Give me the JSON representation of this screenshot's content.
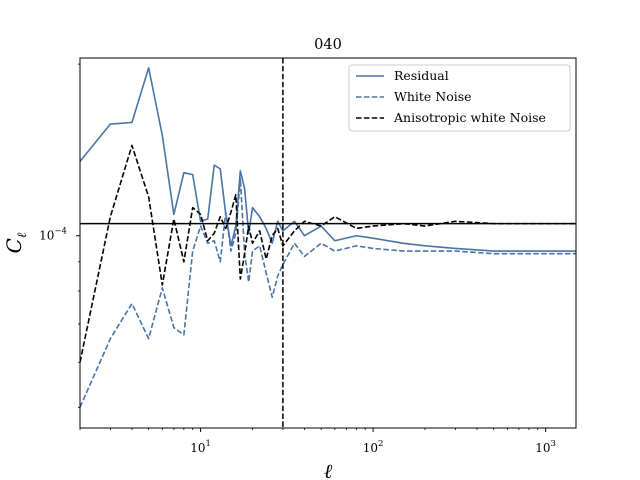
{
  "chart_data": {
    "type": "line",
    "title": "040",
    "xlabel": "ℓ",
    "ylabel": "C",
    "ylabel_sub": "ℓ",
    "xscale": "log",
    "yscale": "log",
    "xlim": [
      2,
      1500
    ],
    "ylim": [
      4.6e-05,
      0.000205
    ],
    "x_ticks": [
      {
        "value": 10,
        "base": "10",
        "exp": "1"
      },
      {
        "value": 100,
        "base": "10",
        "exp": "2"
      },
      {
        "value": 1000,
        "base": "10",
        "exp": "3"
      }
    ],
    "y_ticks": [
      {
        "value": 0.0001,
        "base": "10",
        "exp": "−4"
      }
    ],
    "hline": 0.000105,
    "vline": 30,
    "legend_position": "top-right",
    "series": [
      {
        "name": "Residual",
        "color": "#4a74a5",
        "dash": "solid",
        "points": [
          [
            2,
            0.000135
          ],
          [
            3,
            0.000157
          ],
          [
            4,
            0.000158
          ],
          [
            5,
            0.000197
          ],
          [
            6,
            0.00015
          ],
          [
            7,
            0.000109
          ],
          [
            8,
            0.000129
          ],
          [
            9,
            0.000128
          ],
          [
            10,
            0.000106
          ],
          [
            11,
            0.000107
          ],
          [
            12,
            0.000133
          ],
          [
            13,
            0.000131
          ],
          [
            14,
            0.000109
          ],
          [
            15,
            9.6e-05
          ],
          [
            16,
            0.000104
          ],
          [
            17,
            0.00013
          ],
          [
            18,
            0.000121
          ],
          [
            19,
            0.000101
          ],
          [
            20,
            0.000112
          ],
          [
            22,
            0.000108
          ],
          [
            24,
            0.000103
          ],
          [
            26,
            9.7e-05
          ],
          [
            28,
            0.000106
          ],
          [
            30,
            0.000102
          ],
          [
            35,
            0.000106
          ],
          [
            40,
            0.0001
          ],
          [
            50,
            0.000104
          ],
          [
            60,
            9.8e-05
          ],
          [
            80,
            0.0001
          ],
          [
            100,
            9.9e-05
          ],
          [
            150,
            9.7e-05
          ],
          [
            200,
            9.6e-05
          ],
          [
            300,
            9.5e-05
          ],
          [
            500,
            9.4e-05
          ],
          [
            800,
            9.4e-05
          ],
          [
            1500,
            9.4e-05
          ]
        ]
      },
      {
        "name": "White Noise",
        "color": "#4a74a5",
        "dash": "dashed",
        "points": [
          [
            2,
            5e-05
          ],
          [
            3,
            6.6e-05
          ],
          [
            4,
            7.6e-05
          ],
          [
            5,
            6.6e-05
          ],
          [
            6,
            8.1e-05
          ],
          [
            7,
            6.9e-05
          ],
          [
            8,
            6.7e-05
          ],
          [
            9,
            9.4e-05
          ],
          [
            10,
            0.000104
          ],
          [
            11,
            9.7e-05
          ],
          [
            12,
            9.8e-05
          ],
          [
            13,
            9e-05
          ],
          [
            14,
            0.00011
          ],
          [
            15,
            9.4e-05
          ],
          [
            16,
            0.000101
          ],
          [
            17,
            0.000126
          ],
          [
            18,
            9.3e-05
          ],
          [
            19,
            8.3e-05
          ],
          [
            20,
            9.4e-05
          ],
          [
            22,
            9.6e-05
          ],
          [
            24,
            8.6e-05
          ],
          [
            26,
            7.8e-05
          ],
          [
            28,
            8.5e-05
          ],
          [
            30,
            8.9e-05
          ],
          [
            35,
            9.7e-05
          ],
          [
            40,
            9.2e-05
          ],
          [
            50,
            9.7e-05
          ],
          [
            60,
            9.4e-05
          ],
          [
            80,
            9.6e-05
          ],
          [
            100,
            9.5e-05
          ],
          [
            150,
            9.4e-05
          ],
          [
            200,
            9.4e-05
          ],
          [
            300,
            9.4e-05
          ],
          [
            500,
            9.3e-05
          ],
          [
            800,
            9.3e-05
          ],
          [
            1500,
            9.3e-05
          ]
        ]
      },
      {
        "name": "Anisotropic white Noise",
        "color": "#000000",
        "dash": "dashed",
        "points": [
          [
            2,
            6e-05
          ],
          [
            3,
            0.000108
          ],
          [
            4,
            0.000144
          ],
          [
            5,
            0.000117
          ],
          [
            6,
            8.2e-05
          ],
          [
            7,
            0.000107
          ],
          [
            8,
            9e-05
          ],
          [
            9,
            0.000112
          ],
          [
            10,
            0.000109
          ],
          [
            11,
            9.8e-05
          ],
          [
            12,
            0.000101
          ],
          [
            13,
            0.000108
          ],
          [
            14,
            0.000103
          ],
          [
            15,
            0.00011
          ],
          [
            16,
            0.000118
          ],
          [
            17,
            8.4e-05
          ],
          [
            18,
            9.3e-05
          ],
          [
            19,
            0.000104
          ],
          [
            20,
            9.7e-05
          ],
          [
            22,
            0.000102
          ],
          [
            24,
            9.1e-05
          ],
          [
            26,
            0.0001
          ],
          [
            28,
            0.000103
          ],
          [
            30,
            9.6e-05
          ],
          [
            35,
            0.000102
          ],
          [
            40,
            0.000106
          ],
          [
            50,
            0.000104
          ],
          [
            60,
            0.000108
          ],
          [
            80,
            0.000103
          ],
          [
            100,
            0.000104
          ],
          [
            150,
            0.000105
          ],
          [
            200,
            0.000104
          ],
          [
            300,
            0.000106
          ],
          [
            500,
            0.000105
          ],
          [
            800,
            0.000105
          ],
          [
            1500,
            0.000105
          ]
        ]
      }
    ]
  }
}
